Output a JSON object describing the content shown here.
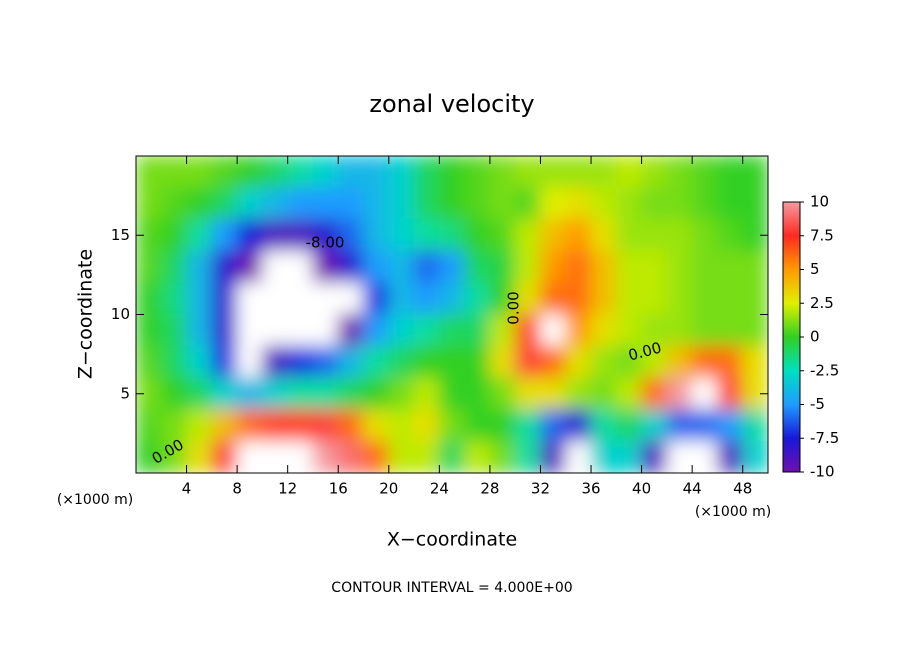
{
  "chart_data": {
    "type": "contour",
    "title": "zonal velocity",
    "x_label": "X−coordinate",
    "y_label": "Z−coordinate",
    "x_unit": "(×1000 m)",
    "y_unit": "(×1000 m)",
    "footer": "CONTOUR INTERVAL = 4.000E+00",
    "xlim": [
      0,
      50
    ],
    "ylim": [
      0,
      20
    ],
    "xticks": [
      4,
      8,
      12,
      16,
      20,
      24,
      28,
      32,
      36,
      40,
      44,
      48
    ],
    "yticks": [
      5,
      10,
      15
    ],
    "colorbar_ticks": [
      10,
      7.5,
      5,
      2.5,
      0,
      -2.5,
      -5,
      -7.5,
      -10
    ],
    "colors": [
      "#f59aa0",
      "#ff2a20",
      "#ff9a00",
      "#e0f000",
      "#30d020",
      "#00e0c0",
      "#1e9cff",
      "#1818d8",
      "#7010b0"
    ],
    "contour_labels": [
      {
        "value": -8,
        "label": "-8.00"
      },
      {
        "value": 0,
        "label": "0.00"
      },
      {
        "value": 0,
        "label": "0.00"
      },
      {
        "value": 0,
        "label": "0.00"
      }
    ],
    "x": [
      1,
      3,
      5,
      7,
      9,
      11,
      13,
      15,
      17,
      19,
      21,
      23,
      25,
      27,
      29,
      31,
      33,
      35,
      37,
      39,
      41,
      43,
      45,
      47,
      49
    ],
    "y": [
      19,
      17,
      15,
      13,
      11,
      9,
      7,
      5,
      3,
      1
    ],
    "z": [
      [
        1,
        1,
        1,
        0.5,
        0,
        -1,
        -2,
        -3,
        -4,
        -4,
        -3,
        -1,
        0,
        0.5,
        1,
        1.5,
        1.5,
        1.5,
        1.5,
        2,
        1.5,
        1,
        0.5,
        0,
        0
      ],
      [
        1,
        0.5,
        0,
        -1,
        -3,
        -4,
        -5,
        -5,
        -5,
        -4,
        -3,
        -1,
        0,
        0.5,
        1,
        0.5,
        2.5,
        3,
        2,
        1.5,
        1,
        1,
        0.5,
        0,
        0
      ],
      [
        0.5,
        0,
        -2,
        -5,
        -7.5,
        -9,
        -9,
        -8,
        -6,
        -4,
        -3,
        -2,
        -1.5,
        0,
        0.5,
        2,
        4,
        5,
        3,
        1.5,
        1.5,
        1.5,
        1,
        0.5,
        0
      ],
      [
        0.5,
        -1,
        -4,
        -8,
        -10,
        -11,
        -12,
        -10,
        -8,
        -5,
        -4,
        -6,
        -5,
        -1,
        -0.5,
        2,
        5,
        6,
        4,
        2,
        2,
        1.5,
        1,
        1,
        1
      ],
      [
        0,
        -1.5,
        -4,
        -8,
        -11,
        -13,
        -13,
        -12,
        -12,
        -7,
        -4,
        -5,
        -4,
        -2,
        0,
        3,
        6,
        6,
        4,
        2,
        2,
        1.5,
        1,
        1,
        1
      ],
      [
        0,
        -1,
        -4,
        -8,
        -11,
        -12,
        -13,
        -13,
        -10,
        -5,
        -3,
        -2,
        -1,
        -1,
        2,
        7,
        11,
        5,
        3,
        2,
        1.5,
        1.5,
        1,
        1,
        1
      ],
      [
        0.5,
        -1,
        -3,
        -7,
        -11,
        -9,
        -7,
        -6,
        -4,
        -2,
        -1,
        0,
        0,
        0,
        3,
        8,
        6,
        3,
        1.5,
        1,
        2,
        4,
        6,
        6,
        3
      ],
      [
        1,
        0,
        -1,
        -3,
        -4,
        -3,
        -2,
        -2,
        -1,
        0,
        1,
        2,
        0,
        0,
        1,
        3,
        3,
        1.5,
        1,
        2,
        6,
        10,
        11,
        8,
        3
      ],
      [
        0.5,
        1,
        2,
        4,
        6,
        7,
        7,
        8,
        6,
        3,
        2,
        3,
        1,
        0,
        0,
        -2,
        -6,
        -8,
        -2,
        -1,
        -3,
        -6,
        -6,
        -5,
        -2
      ],
      [
        0,
        1,
        3,
        8,
        11,
        12,
        11,
        10,
        9,
        6,
        2,
        2,
        -1,
        2,
        1,
        -2,
        -9,
        -11,
        -3,
        -3,
        -9,
        -12,
        -11,
        -9,
        -3
      ]
    ]
  }
}
